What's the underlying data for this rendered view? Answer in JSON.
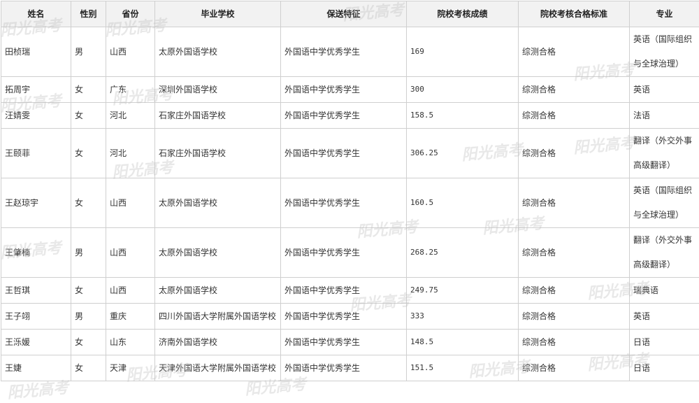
{
  "watermark": "阳光高考",
  "headers": [
    "姓名",
    "性别",
    "省份",
    "毕业学校",
    "保送特征",
    "院校考核成绩",
    "院校考核合格标准",
    "专业"
  ],
  "rows": [
    {
      "name": "田桢瑞",
      "gender": "男",
      "province": "山西",
      "school": "太原外国语学校",
      "feature": "外国语中学优秀学生",
      "score": "169",
      "standard": "综测合格",
      "major": "英语（国际组织与全球治理）"
    },
    {
      "name": "拓周宇",
      "gender": "女",
      "province": "广东",
      "school": "深圳外国语学校",
      "feature": "外国语中学优秀学生",
      "score": "300",
      "standard": "综测合格",
      "major": "英语"
    },
    {
      "name": "汪婧雯",
      "gender": "女",
      "province": "河北",
      "school": "石家庄外国语学校",
      "feature": "外国语中学优秀学生",
      "score": "158.5",
      "standard": "综测合格",
      "major": "法语"
    },
    {
      "name": "王颐菲",
      "gender": "女",
      "province": "河北",
      "school": "石家庄外国语学校",
      "feature": "外国语中学优秀学生",
      "score": "306.25",
      "standard": "综测合格",
      "major": "翻译（外交外事高级翻译）"
    },
    {
      "name": "王赵琼宇",
      "gender": "女",
      "province": "山西",
      "school": "太原外国语学校",
      "feature": "外国语中学优秀学生",
      "score": "160.5",
      "standard": "综测合格",
      "major": "英语（国际组织与全球治理）"
    },
    {
      "name": "王肇楠",
      "gender": "男",
      "province": "山西",
      "school": "太原外国语学校",
      "feature": "外国语中学优秀学生",
      "score": "268.25",
      "standard": "综测合格",
      "major": "翻译（外交外事高级翻译）"
    },
    {
      "name": "王哲琪",
      "gender": "女",
      "province": "山西",
      "school": "太原外国语学校",
      "feature": "外国语中学优秀学生",
      "score": "249.75",
      "standard": "综测合格",
      "major": "瑞典语"
    },
    {
      "name": "王子翊",
      "gender": "男",
      "province": "重庆",
      "school": "四川外国语大学附属外国语学校",
      "feature": "外国语中学优秀学生",
      "score": "333",
      "standard": "综测合格",
      "major": "英语"
    },
    {
      "name": "王泺媛",
      "gender": "女",
      "province": "山东",
      "school": "济南外国语学校",
      "feature": "外国语中学优秀学生",
      "score": "148.5",
      "standard": "综测合格",
      "major": "日语"
    },
    {
      "name": "王婕",
      "gender": "女",
      "province": "天津",
      "school": "天津外国语大学附属外国语学校",
      "feature": "外国语中学优秀学生",
      "score": "151.5",
      "standard": "综测合格",
      "major": "日语"
    }
  ]
}
